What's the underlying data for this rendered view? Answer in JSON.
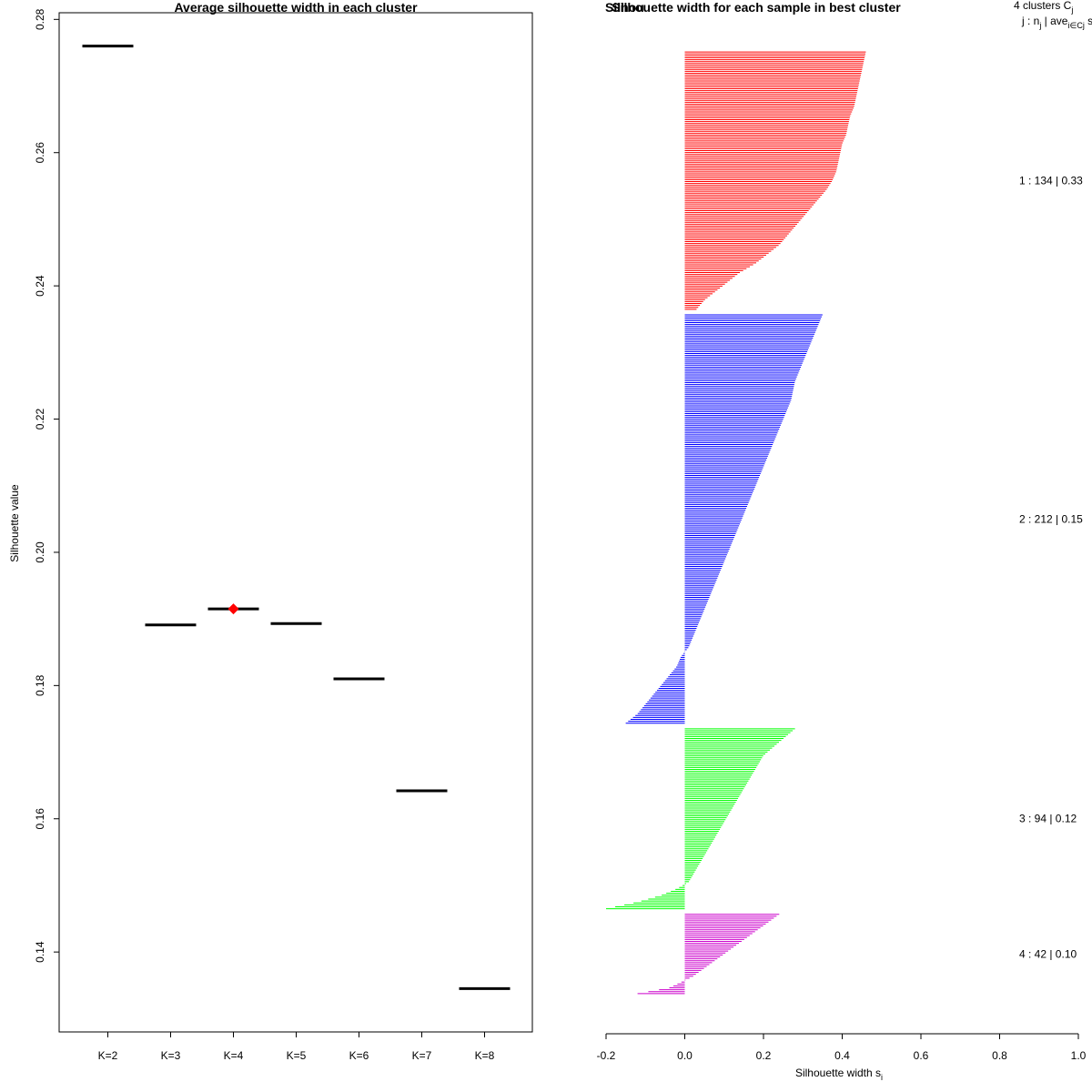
{
  "chart_data": [
    {
      "type": "scatter",
      "title": "Average silhouette width in each cluster",
      "ylabel": "Silhouette value",
      "xlabel": "",
      "ylim": [
        0.128,
        0.281
      ],
      "yticks": [
        0.14,
        0.16,
        0.18,
        0.2,
        0.22,
        0.24,
        0.26,
        0.28
      ],
      "ytick_labels": [
        "0.14",
        "0.16",
        "0.18",
        "0.20",
        "0.22",
        "0.24",
        "0.26",
        "0.28"
      ],
      "categories": [
        "K=2",
        "K=3",
        "K=4",
        "K=5",
        "K=6",
        "K=7",
        "K=8"
      ],
      "values": [
        0.276,
        0.1891,
        0.1915,
        0.1893,
        0.181,
        0.1642,
        0.1345
      ],
      "best_index": 2,
      "best_color": "#ff0000",
      "line_color": "#000000"
    },
    {
      "type": "bar",
      "title": "Silhouette width for each sample in best cluster",
      "title_overlap": "Silhou",
      "xlabel": "Silhouette width s",
      "xlabel_sub": "i",
      "xlim": [
        -0.2,
        1.0
      ],
      "xticks": [
        -0.2,
        0.0,
        0.2,
        0.4,
        0.6,
        0.8,
        1.0
      ],
      "xtick_labels": [
        "-0.2",
        "0.0",
        "0.2",
        "0.4",
        "0.6",
        "0.8",
        "1.0"
      ],
      "header": {
        "line1": "4  clusters  C",
        "line1_sub": "j",
        "line2": "j :  n",
        "line2_sub": "j",
        "line2_mid": " | ave",
        "line2_sub2": "i∈Cj",
        "line2_end": "  s"
      },
      "clusters": [
        {
          "label": "1 :  134  |  0.33",
          "n": 134,
          "color": "#ff0000",
          "widths": [
            0.46,
            0.455,
            0.45,
            0.445,
            0.44,
            0.435,
            0.43,
            0.42,
            0.415,
            0.41,
            0.4,
            0.395,
            0.39,
            0.385,
            0.375,
            0.36,
            0.34,
            0.32,
            0.3,
            0.28,
            0.26,
            0.24,
            0.21,
            0.18,
            0.14,
            0.11,
            0.08,
            0.05,
            0.03
          ]
        },
        {
          "label": "2 :  212  |  0.15",
          "n": 212,
          "color": "#0000ff",
          "widths": [
            0.35,
            0.34,
            0.33,
            0.32,
            0.31,
            0.3,
            0.29,
            0.28,
            0.275,
            0.27,
            0.26,
            0.25,
            0.24,
            0.23,
            0.22,
            0.21,
            0.2,
            0.19,
            0.18,
            0.17,
            0.16,
            0.15,
            0.14,
            0.13,
            0.12,
            0.11,
            0.1,
            0.09,
            0.08,
            0.07,
            0.06,
            0.05,
            0.04,
            0.03,
            0.02,
            0.01,
            -0.01,
            -0.02,
            -0.04,
            -0.06,
            -0.08,
            -0.1,
            -0.12,
            -0.15
          ]
        },
        {
          "label": "3 :  94  |  0.12",
          "n": 94,
          "color": "#00ff00",
          "widths": [
            0.28,
            0.26,
            0.24,
            0.22,
            0.2,
            0.19,
            0.18,
            0.17,
            0.16,
            0.15,
            0.14,
            0.13,
            0.12,
            0.11,
            0.1,
            0.09,
            0.08,
            0.07,
            0.06,
            0.05,
            0.04,
            0.03,
            0.02,
            0.01,
            -0.02,
            -0.06,
            -0.12,
            -0.2
          ]
        },
        {
          "label": "4 :  42  |  0.10",
          "n": 42,
          "color": "#cc00cc",
          "widths": [
            0.24,
            0.22,
            0.2,
            0.18,
            0.16,
            0.14,
            0.12,
            0.1,
            0.08,
            0.06,
            0.04,
            0.02,
            -0.01,
            -0.04,
            -0.12
          ]
        }
      ]
    }
  ]
}
